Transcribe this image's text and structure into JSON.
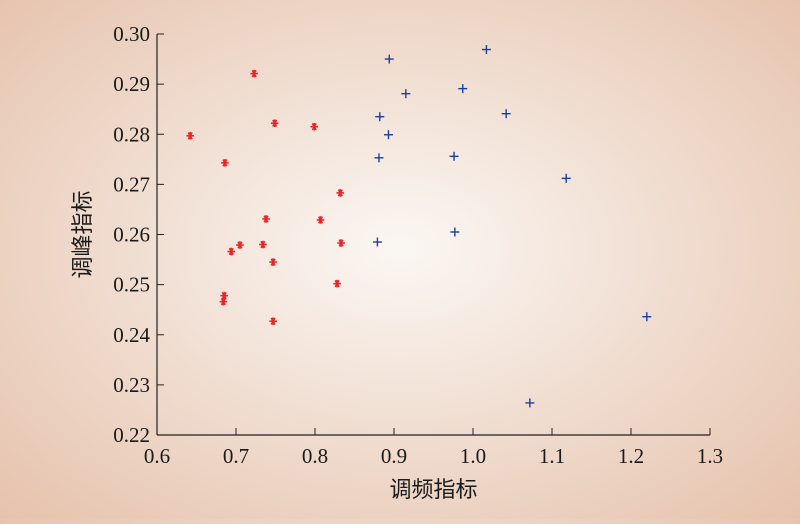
{
  "chart_data": {
    "type": "scatter",
    "title": "",
    "xlabel": "调频指标",
    "ylabel": "调峰指标",
    "xlim": [
      0.6,
      1.3
    ],
    "ylim": [
      0.22,
      0.3
    ],
    "xticks": [
      "0.6",
      "0.7",
      "0.8",
      "0.9",
      "1.0",
      "1.1",
      "1.2",
      "1.3"
    ],
    "yticks": [
      "0.22",
      "0.23",
      "0.24",
      "0.25",
      "0.26",
      "0.27",
      "0.28",
      "0.29",
      "0.30"
    ],
    "grid": false,
    "series": [
      {
        "marker": "asterisk",
        "color": "#e8262a",
        "points": [
          [
            0.642,
            0.2797
          ],
          [
            0.723,
            0.2921
          ],
          [
            0.749,
            0.2822
          ],
          [
            0.799,
            0.2815
          ],
          [
            0.686,
            0.2743
          ],
          [
            0.832,
            0.2683
          ],
          [
            0.738,
            0.2631
          ],
          [
            0.807,
            0.2629
          ],
          [
            0.705,
            0.2579
          ],
          [
            0.734,
            0.258
          ],
          [
            0.833,
            0.2583
          ],
          [
            0.694,
            0.2566
          ],
          [
            0.747,
            0.2545
          ],
          [
            0.828,
            0.2502
          ],
          [
            0.685,
            0.2478
          ],
          [
            0.684,
            0.2466
          ],
          [
            0.747,
            0.2427
          ]
        ]
      },
      {
        "marker": "plus",
        "color": "#1c3f9a",
        "points": [
          [
            1.017,
            0.2969
          ],
          [
            0.894,
            0.295
          ],
          [
            0.987,
            0.2891
          ],
          [
            0.915,
            0.2881
          ],
          [
            0.882,
            0.2835
          ],
          [
            1.042,
            0.2841
          ],
          [
            0.893,
            0.2799
          ],
          [
            0.881,
            0.2753
          ],
          [
            0.976,
            0.2756
          ],
          [
            1.118,
            0.2712
          ],
          [
            0.879,
            0.2585
          ],
          [
            0.977,
            0.2605
          ],
          [
            1.22,
            0.2436
          ],
          [
            1.072,
            0.2264
          ]
        ]
      }
    ]
  }
}
